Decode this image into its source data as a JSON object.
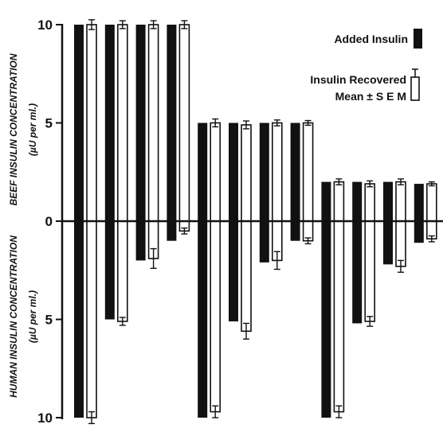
{
  "chart_data": {
    "type": "bar",
    "ylabel_top": "BEEF INSULIN CONCENTRATION",
    "ylabel_top_unit": "(µU per ml.)",
    "ylabel_bottom": "HUMAN INSULIN CONCENTRATION",
    "ylabel_bottom_unit": "(µU per ml.)",
    "y_ticks_top": [
      "10",
      "5",
      "0"
    ],
    "y_ticks_bottom": [
      "5",
      "10"
    ],
    "ylim_top": [
      0,
      10
    ],
    "ylim_bottom": [
      0,
      10
    ],
    "legend": {
      "added": "Added Insulin",
      "recovered_line1": "Insulin Recovered",
      "recovered_line2": "Mean ± S E M"
    },
    "colors": {
      "added": "#111111",
      "recovered": "#ffffff",
      "stroke": "#111111"
    },
    "groups": [
      {
        "beef_added": 10,
        "beef_recovered": 10,
        "beef_sem": 0.25,
        "human_added": 10,
        "human_recovered": 10,
        "human_sem": 0.3
      },
      {
        "beef_added": 10,
        "beef_recovered": 10,
        "beef_sem": 0.2,
        "human_added": 5,
        "human_recovered": 5.1,
        "human_sem": 0.2
      },
      {
        "beef_added": 10,
        "beef_recovered": 10,
        "beef_sem": 0.2,
        "human_added": 2,
        "human_recovered": 1.9,
        "human_sem": 0.5
      },
      {
        "beef_added": 10,
        "beef_recovered": 10,
        "beef_sem": 0.2,
        "human_added": 1,
        "human_recovered": 0.5,
        "human_sem": 0.15
      },
      {
        "beef_added": 5,
        "beef_recovered": 5,
        "beef_sem": 0.2,
        "human_added": 10,
        "human_recovered": 9.7,
        "human_sem": 0.3
      },
      {
        "beef_added": 5,
        "beef_recovered": 4.9,
        "beef_sem": 0.2,
        "human_added": 5.1,
        "human_recovered": 5.6,
        "human_sem": 0.4
      },
      {
        "beef_added": 5,
        "beef_recovered": 5,
        "beef_sem": 0.15,
        "human_added": 2.1,
        "human_recovered": 2,
        "human_sem": 0.45
      },
      {
        "beef_added": 5,
        "beef_recovered": 5,
        "beef_sem": 0.12,
        "human_added": 1,
        "human_recovered": 1,
        "human_sem": 0.15
      },
      {
        "beef_added": 2,
        "beef_recovered": 2,
        "beef_sem": 0.15,
        "human_added": 10,
        "human_recovered": 9.7,
        "human_sem": 0.3
      },
      {
        "beef_added": 2,
        "beef_recovered": 1.9,
        "beef_sem": 0.15,
        "human_added": 5.2,
        "human_recovered": 5.1,
        "human_sem": 0.25
      },
      {
        "beef_added": 2,
        "beef_recovered": 2,
        "beef_sem": 0.15,
        "human_added": 2.2,
        "human_recovered": 2.3,
        "human_sem": 0.3
      },
      {
        "beef_added": 1.9,
        "beef_recovered": 1.9,
        "beef_sem": 0.1,
        "human_added": 1.1,
        "human_recovered": 0.9,
        "human_sem": 0.15
      }
    ]
  }
}
